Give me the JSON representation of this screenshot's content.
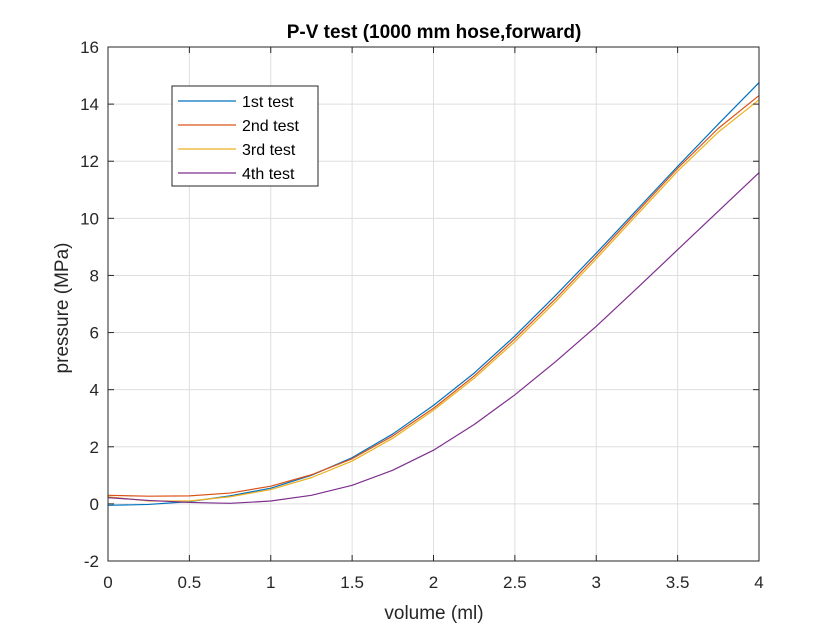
{
  "chart_data": {
    "type": "line",
    "title": "P-V test (1000 mm hose,forward)",
    "xlabel": "volume (ml)",
    "ylabel": "pressure (MPa)",
    "xlim": [
      0,
      4
    ],
    "ylim": [
      -2,
      16
    ],
    "xticks": [
      0,
      0.5,
      1,
      1.5,
      2,
      2.5,
      3,
      3.5,
      4
    ],
    "yticks": [
      -2,
      0,
      2,
      4,
      6,
      8,
      10,
      12,
      14,
      16
    ],
    "xtick_labels": [
      "0",
      "0.5",
      "1",
      "1.5",
      "2",
      "2.5",
      "3",
      "3.5",
      "4"
    ],
    "ytick_labels": [
      "-2",
      "0",
      "2",
      "4",
      "6",
      "8",
      "10",
      "12",
      "14",
      "16"
    ],
    "grid": true,
    "legend": "top-left",
    "x": [
      0,
      0.25,
      0.5,
      0.75,
      1,
      1.25,
      1.5,
      1.75,
      2,
      2.25,
      2.5,
      2.75,
      3,
      3.25,
      3.5,
      3.75,
      4
    ],
    "series": [
      {
        "name": "1st test",
        "color": "#0072BD",
        "values": [
          -0.05,
          -0.02,
          0.08,
          0.28,
          0.55,
          1.0,
          1.62,
          2.45,
          3.45,
          4.58,
          5.88,
          7.3,
          8.78,
          10.3,
          11.82,
          13.3,
          14.75
        ]
      },
      {
        "name": "2nd test",
        "color": "#D95319",
        "values": [
          0.3,
          0.27,
          0.28,
          0.38,
          0.62,
          1.02,
          1.58,
          2.38,
          3.35,
          4.48,
          5.78,
          7.18,
          8.68,
          10.22,
          11.75,
          13.15,
          14.3
        ]
      },
      {
        "name": "3rd test",
        "color": "#EDB120",
        "values": [
          0.25,
          0.1,
          0.1,
          0.25,
          0.5,
          0.92,
          1.5,
          2.3,
          3.28,
          4.4,
          5.68,
          7.08,
          8.58,
          10.12,
          11.65,
          13.02,
          14.15
        ]
      },
      {
        "name": "4th test",
        "color": "#7E2F8E",
        "values": [
          0.22,
          0.12,
          0.05,
          0.02,
          0.1,
          0.3,
          0.65,
          1.18,
          1.88,
          2.78,
          3.82,
          4.98,
          6.22,
          7.55,
          8.9,
          10.25,
          11.6
        ]
      }
    ]
  }
}
